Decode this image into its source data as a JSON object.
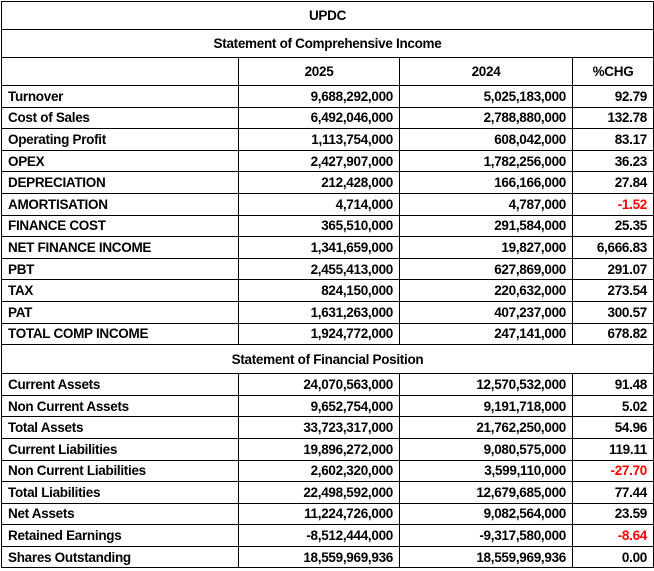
{
  "title": "UPDC",
  "income_statement": {
    "heading": "Statement of Comprehensive Income",
    "columns": [
      "",
      "2025",
      "2024",
      "%CHG"
    ],
    "rows": [
      [
        "Turnover",
        "9,688,292,000",
        "5,025,183,000",
        "92.79"
      ],
      [
        "Cost of Sales",
        "6,492,046,000",
        "2,788,880,000",
        "132.78"
      ],
      [
        "Operating Profit",
        "1,113,754,000",
        "608,042,000",
        "83.17"
      ],
      [
        "OPEX",
        "2,427,907,000",
        "1,782,256,000",
        "36.23"
      ],
      [
        "DEPRECIATION",
        "212,428,000",
        "166,166,000",
        "27.84"
      ],
      [
        "AMORTISATION",
        "4,714,000",
        "4,787,000",
        "-1.52"
      ],
      [
        "FINANCE COST",
        "365,510,000",
        "291,584,000",
        "25.35"
      ],
      [
        "NET FINANCE INCOME",
        "1,341,659,000",
        "19,827,000",
        "6,666.83"
      ],
      [
        "PBT",
        "2,455,413,000",
        "627,869,000",
        "291.07"
      ],
      [
        "TAX",
        "824,150,000",
        "220,632,000",
        "273.54"
      ],
      [
        "PAT",
        "1,631,263,000",
        "407,237,000",
        "300.57"
      ],
      [
        "TOTAL COMP INCOME",
        "1,924,772,000",
        "247,141,000",
        "678.82"
      ]
    ]
  },
  "financial_position": {
    "heading": "Statement of Financial Position",
    "rows": [
      [
        "Current Assets",
        "24,070,563,000",
        "12,570,532,000",
        "91.48"
      ],
      [
        "Non Current Assets",
        "9,652,754,000",
        "9,191,718,000",
        "5.02"
      ],
      [
        "Total Assets",
        "33,723,317,000",
        "21,762,250,000",
        "54.96"
      ],
      [
        "Current Liabilities",
        "19,896,272,000",
        "9,080,575,000",
        "119.11"
      ],
      [
        "Non Current Liabilities",
        "2,602,320,000",
        "3,599,110,000",
        "-27.70"
      ],
      [
        "Total Liabilities",
        "22,498,592,000",
        "12,679,685,000",
        "77.44"
      ],
      [
        "Net Assets",
        "11,224,726,000",
        "9,082,564,000",
        "23.59"
      ],
      [
        "Retained Earnings",
        "-8,512,444,000",
        "-9,317,580,000",
        "-8.64"
      ],
      [
        "Shares Outstanding",
        "18,559,969,936",
        "18,559,969,936",
        "0.00"
      ]
    ]
  },
  "colors": {
    "negative_change": "#ff0000",
    "text": "#000000",
    "border": "#000000"
  }
}
